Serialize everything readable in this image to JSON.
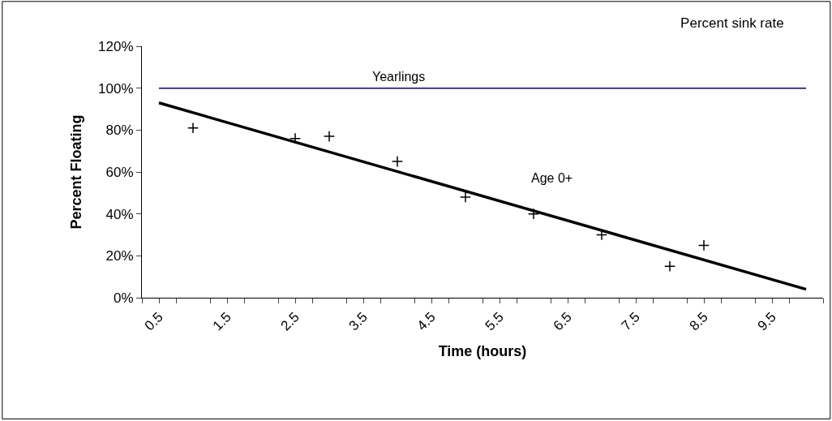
{
  "chart_data": {
    "type": "scatter",
    "title": "Percent sink rate",
    "xlabel": "Time (hours)",
    "ylabel": "Percent Floating",
    "series": [
      {
        "name": "Yearlings",
        "type": "line",
        "color": "#000080",
        "x": [
          0.5,
          10
        ],
        "values": [
          100,
          100
        ],
        "marker": "none",
        "line_style": "solid"
      },
      {
        "name": "Age 0+",
        "color": "#000000",
        "x": [
          1,
          2.5,
          3,
          4,
          5,
          6,
          7,
          8,
          8.5
        ],
        "values": [
          81,
          76,
          77,
          65,
          48,
          40,
          30,
          15,
          25
        ],
        "marker": "cross"
      },
      {
        "type": "line",
        "color": "#000000",
        "x": [
          0.5,
          10
        ],
        "values": [
          93,
          4
        ],
        "marker": "none",
        "line_style": "solid"
      }
    ],
    "xlim": [
      0.25,
      10.25
    ],
    "xticks": [
      {
        "value": 0.25,
        "label": null
      },
      {
        "value": 0.5,
        "label": "0.5"
      },
      {
        "value": 0.75,
        "label": null
      },
      {
        "value": 1.25,
        "label": null
      },
      {
        "value": 1.5,
        "label": "1.5"
      },
      {
        "value": 1.75,
        "label": null
      },
      {
        "value": 2.25,
        "label": null
      },
      {
        "value": 2.5,
        "label": "2.5"
      },
      {
        "value": 2.75,
        "label": null
      },
      {
        "value": 3.25,
        "label": null
      },
      {
        "value": 3.5,
        "label": "3.5"
      },
      {
        "value": 3.75,
        "label": null
      },
      {
        "value": 4.25,
        "label": null
      },
      {
        "value": 4.5,
        "label": "4.5"
      },
      {
        "value": 4.75,
        "label": null
      },
      {
        "value": 5.25,
        "label": null
      },
      {
        "value": 5.5,
        "label": "5.5"
      },
      {
        "value": 5.75,
        "label": null
      },
      {
        "value": 6.25,
        "label": null
      },
      {
        "value": 6.5,
        "label": "6.5"
      },
      {
        "value": 6.75,
        "label": null
      },
      {
        "value": 7.25,
        "label": null
      },
      {
        "value": 7.5,
        "label": "7.5"
      },
      {
        "value": 7.75,
        "label": null
      },
      {
        "value": 8.25,
        "label": null
      },
      {
        "value": 8.5,
        "label": "8.5"
      },
      {
        "value": 8.75,
        "label": null
      },
      {
        "value": 9.25,
        "label": null
      },
      {
        "value": 9.5,
        "label": "9.5"
      },
      {
        "value": 9.75,
        "label": null
      },
      {
        "value": 10.25,
        "label": null
      }
    ],
    "ylim": [
      0,
      120
    ],
    "yticks": [
      {
        "value": 0,
        "label": "0%"
      },
      {
        "value": 20,
        "label": "20%"
      },
      {
        "value": 40,
        "label": "40%"
      },
      {
        "value": 60,
        "label": "60%"
      },
      {
        "value": 80,
        "label": "80%"
      },
      {
        "value": 100,
        "label": "100%"
      },
      {
        "value": 120,
        "label": "120%"
      }
    ],
    "legend": false
  }
}
